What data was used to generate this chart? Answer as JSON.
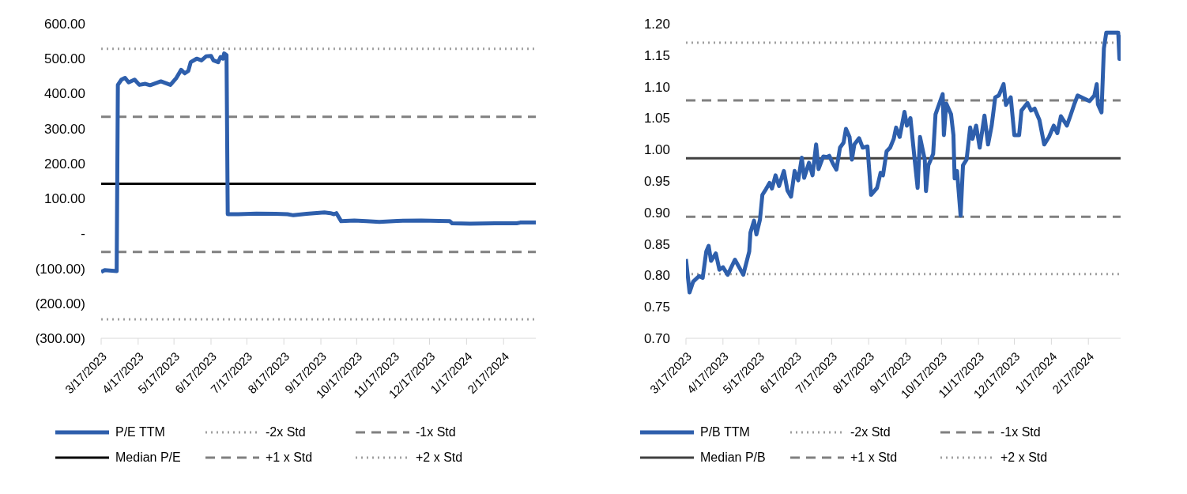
{
  "chart_data": [
    {
      "type": "line",
      "legend": "bottom",
      "xlim": [
        "2023-03-17",
        "2024-03-15"
      ],
      "xticks": [
        {
          "value": "2023-03-17",
          "label": "3/17/2023"
        },
        {
          "value": "2023-04-17",
          "label": "4/17/2023"
        },
        {
          "value": "2023-05-17",
          "label": "5/17/2023"
        },
        {
          "value": "2023-06-17",
          "label": "6/17/2023"
        },
        {
          "value": "2023-07-17",
          "label": "7/17/2023"
        },
        {
          "value": "2023-08-17",
          "label": "8/17/2023"
        },
        {
          "value": "2023-09-17",
          "label": "9/17/2023"
        },
        {
          "value": "2023-10-17",
          "label": "10/17/2023"
        },
        {
          "value": "2023-11-17",
          "label": "11/17/2023"
        },
        {
          "value": "2023-12-17",
          "label": "12/17/2023"
        },
        {
          "value": "2024-01-17",
          "label": "1/17/2024"
        },
        {
          "value": "2024-02-17",
          "label": "2/17/2024"
        }
      ],
      "ylim": [
        -300,
        600
      ],
      "yticks": [
        {
          "value": -300,
          "label": "(300.00)"
        },
        {
          "value": -200,
          "label": "(200.00)"
        },
        {
          "value": -100,
          "label": "(100.00)"
        },
        {
          "value": 0,
          "label": "-"
        },
        {
          "value": 100,
          "label": "100.00"
        },
        {
          "value": 200,
          "label": "200.00"
        },
        {
          "value": 300,
          "label": "300.00"
        },
        {
          "value": 400,
          "label": "400.00"
        },
        {
          "value": 500,
          "label": "500.00"
        },
        {
          "value": 600,
          "label": "600.00"
        }
      ],
      "grid": false,
      "line_style": "solid",
      "marker": "none",
      "x": [
        "2023-03-17",
        "2023-03-20",
        "2023-03-30",
        "2023-03-31",
        "2023-04-03",
        "2023-04-06",
        "2023-04-09",
        "2023-04-14",
        "2023-04-18",
        "2023-04-23",
        "2023-04-27",
        "2023-05-06",
        "2023-05-14",
        "2023-05-19",
        "2023-05-23",
        "2023-05-26",
        "2023-05-29",
        "2023-05-31",
        "2023-06-05",
        "2023-06-09",
        "2023-06-13",
        "2023-06-17",
        "2023-06-19",
        "2023-06-23",
        "2023-06-25",
        "2023-06-27",
        "2023-06-28",
        "2023-06-30",
        "2023-07-01",
        "2023-07-10",
        "2023-07-25",
        "2023-08-10",
        "2023-08-20",
        "2023-08-25",
        "2023-09-05",
        "2023-09-20",
        "2023-09-25",
        "2023-09-28",
        "2023-09-30",
        "2023-10-04",
        "2023-10-15",
        "2023-10-25",
        "2023-11-05",
        "2023-11-20",
        "2023-12-10",
        "2023-12-25",
        "2024-01-03",
        "2024-01-05",
        "2024-01-20",
        "2024-02-10",
        "2024-02-28",
        "2024-03-02",
        "2024-03-15"
      ],
      "series": [
        {
          "name": "P/E TTM",
          "color": "#2e5fac",
          "values": [
            -110,
            -105,
            -108,
            425,
            440,
            445,
            432,
            440,
            425,
            428,
            424,
            435,
            425,
            445,
            468,
            458,
            465,
            490,
            500,
            495,
            507,
            508,
            495,
            490,
            505,
            500,
            515,
            510,
            55,
            55,
            57,
            56,
            55,
            52,
            56,
            60,
            58,
            55,
            58,
            35,
            37,
            35,
            33,
            36,
            37,
            36,
            35,
            29,
            28,
            29,
            29,
            31,
            31
          ]
        }
      ],
      "ref_lines": [
        {
          "axis": "y",
          "value": -246,
          "label": "-2x Std",
          "color": "#a0a0a0",
          "line_style": "dotted"
        },
        {
          "axis": "y",
          "value": -53,
          "label": "-1x Std",
          "color": "#808080",
          "line_style": "dashed"
        },
        {
          "axis": "y",
          "value": 142,
          "label": "Median P/E",
          "color": "#000000",
          "line_style": "solid"
        },
        {
          "axis": "y",
          "value": 334,
          "label": "+1 x Std",
          "color": "#808080",
          "line_style": "dashed"
        },
        {
          "axis": "y",
          "value": 528,
          "label": "+2 x Std",
          "color": "#a0a0a0",
          "line_style": "dotted"
        }
      ]
    },
    {
      "type": "line",
      "legend": "bottom",
      "xlim": [
        "2023-03-17",
        "2024-03-15"
      ],
      "xticks": [
        {
          "value": "2023-03-17",
          "label": "3/17/2023"
        },
        {
          "value": "2023-04-17",
          "label": "4/17/2023"
        },
        {
          "value": "2023-05-17",
          "label": "5/17/2023"
        },
        {
          "value": "2023-06-17",
          "label": "6/17/2023"
        },
        {
          "value": "2023-07-17",
          "label": "7/17/2023"
        },
        {
          "value": "2023-08-17",
          "label": "8/17/2023"
        },
        {
          "value": "2023-09-17",
          "label": "9/17/2023"
        },
        {
          "value": "2023-10-17",
          "label": "10/17/2023"
        },
        {
          "value": "2023-11-17",
          "label": "11/17/2023"
        },
        {
          "value": "2023-12-17",
          "label": "12/17/2023"
        },
        {
          "value": "2024-01-17",
          "label": "1/17/2024"
        },
        {
          "value": "2024-02-17",
          "label": "2/17/2024"
        }
      ],
      "ylim": [
        0.7,
        1.2
      ],
      "yticks": [
        {
          "value": 0.7,
          "label": "0.70"
        },
        {
          "value": 0.75,
          "label": "0.75"
        },
        {
          "value": 0.8,
          "label": "0.80"
        },
        {
          "value": 0.85,
          "label": "0.85"
        },
        {
          "value": 0.9,
          "label": "0.90"
        },
        {
          "value": 0.95,
          "label": "0.95"
        },
        {
          "value": 1,
          "label": "1.00"
        },
        {
          "value": 1.05,
          "label": "1.05"
        },
        {
          "value": 1.1,
          "label": "1.10"
        },
        {
          "value": 1.15,
          "label": "1.15"
        },
        {
          "value": 1.2,
          "label": "1.20"
        }
      ],
      "grid": false,
      "line_style": "solid",
      "marker": "none",
      "x": [
        "2023-03-17",
        "2023-03-20",
        "2023-03-23",
        "2023-03-28",
        "2023-03-31",
        "2023-04-03",
        "2023-04-05",
        "2023-04-07",
        "2023-04-11",
        "2023-04-14",
        "2023-04-17",
        "2023-04-21",
        "2023-04-27",
        "2023-05-04",
        "2023-05-09",
        "2023-05-10",
        "2023-05-13",
        "2023-05-15",
        "2023-05-18",
        "2023-05-20",
        "2023-05-23",
        "2023-05-26",
        "2023-05-28",
        "2023-05-31",
        "2023-06-03",
        "2023-06-07",
        "2023-06-10",
        "2023-06-13",
        "2023-06-16",
        "2023-06-19",
        "2023-06-22",
        "2023-06-24",
        "2023-06-28",
        "2023-07-01",
        "2023-07-04",
        "2023-07-06",
        "2023-07-10",
        "2023-07-13",
        "2023-07-15",
        "2023-07-18",
        "2023-07-21",
        "2023-07-24",
        "2023-07-27",
        "2023-07-29",
        "2023-08-01",
        "2023-08-03",
        "2023-08-05",
        "2023-08-09",
        "2023-08-12",
        "2023-08-16",
        "2023-08-19",
        "2023-08-24",
        "2023-08-27",
        "2023-08-29",
        "2023-09-01",
        "2023-09-04",
        "2023-09-07",
        "2023-09-09",
        "2023-09-12",
        "2023-09-16",
        "2023-09-18",
        "2023-09-21",
        "2023-09-25",
        "2023-09-27",
        "2023-09-29",
        "2023-10-03",
        "2023-10-04",
        "2023-10-06",
        "2023-10-10",
        "2023-10-12",
        "2023-10-18",
        "2023-10-19",
        "2023-10-21",
        "2023-10-25",
        "2023-10-27",
        "2023-10-28",
        "2023-10-30",
        "2023-11-02",
        "2023-11-04",
        "2023-11-07",
        "2023-11-10",
        "2023-11-12",
        "2023-11-15",
        "2023-11-18",
        "2023-11-22",
        "2023-11-25",
        "2023-11-28",
        "2023-12-01",
        "2023-12-04",
        "2023-12-08",
        "2023-12-10",
        "2023-12-14",
        "2023-12-17",
        "2023-12-21",
        "2023-12-23",
        "2023-12-28",
        "2023-12-31",
        "2024-01-03",
        "2024-01-07",
        "2024-01-11",
        "2024-01-15",
        "2024-01-19",
        "2024-01-22",
        "2024-01-25",
        "2024-01-30",
        "2024-02-02",
        "2024-02-05",
        "2024-02-08",
        "2024-02-18",
        "2024-02-22",
        "2024-02-24",
        "2024-02-25",
        "2024-02-28",
        "2024-03-01",
        "2024-03-03",
        "2024-03-13",
        "2024-03-14",
        "2024-03-15"
      ],
      "series": [
        {
          "name": "P/B TTM",
          "color": "#2e5fac",
          "values": [
            0.826,
            0.773,
            0.79,
            0.799,
            0.796,
            0.838,
            0.847,
            0.823,
            0.835,
            0.809,
            0.813,
            0.801,
            0.825,
            0.801,
            0.838,
            0.868,
            0.887,
            0.865,
            0.889,
            0.928,
            0.937,
            0.947,
            0.938,
            0.959,
            0.942,
            0.966,
            0.935,
            0.925,
            0.966,
            0.951,
            0.987,
            0.955,
            0.979,
            0.959,
            1.008,
            0.969,
            0.989,
            0.988,
            0.99,
            0.978,
            0.968,
            1.003,
            1.011,
            1.033,
            1.02,
            0.984,
            1.008,
            1.018,
            1.003,
            1.005,
            0.928,
            0.939,
            0.963,
            0.959,
            0.997,
            1.003,
            1.017,
            1.035,
            1.02,
            1.06,
            1.038,
            1.05,
            0.975,
            0.939,
            1.02,
            0.984,
            0.934,
            0.975,
            0.993,
            1.056,
            1.088,
            1.023,
            1.073,
            1.056,
            1.023,
            0.954,
            0.966,
            0.895,
            0.975,
            0.984,
            1.035,
            1.017,
            1.038,
            1.003,
            1.054,
            1.008,
            1.038,
            1.083,
            1.086,
            1.104,
            1.071,
            1.083,
            1.023,
            1.023,
            1.062,
            1.074,
            1.062,
            1.065,
            1.047,
            1.008,
            1.02,
            1.038,
            1.026,
            1.053,
            1.038,
            1.054,
            1.071,
            1.086,
            1.077,
            1.086,
            1.104,
            1.072,
            1.059,
            1.161,
            1.186,
            1.186,
            1.144,
            1.182
          ]
        }
      ],
      "ref_lines": [
        {
          "axis": "y",
          "value": 0.802,
          "label": "-2x Std",
          "color": "#a0a0a0",
          "line_style": "dotted"
        },
        {
          "axis": "y",
          "value": 0.893,
          "label": "-1x Std",
          "color": "#808080",
          "line_style": "dashed"
        },
        {
          "axis": "y",
          "value": 0.986,
          "label": "Median P/B",
          "color": "#404040",
          "line_style": "solid"
        },
        {
          "axis": "y",
          "value": 1.078,
          "label": "+1 x Std",
          "color": "#808080",
          "line_style": "dashed"
        },
        {
          "axis": "y",
          "value": 1.17,
          "label": "+2 x Std",
          "color": "#a0a0a0",
          "line_style": "dotted"
        }
      ]
    }
  ]
}
